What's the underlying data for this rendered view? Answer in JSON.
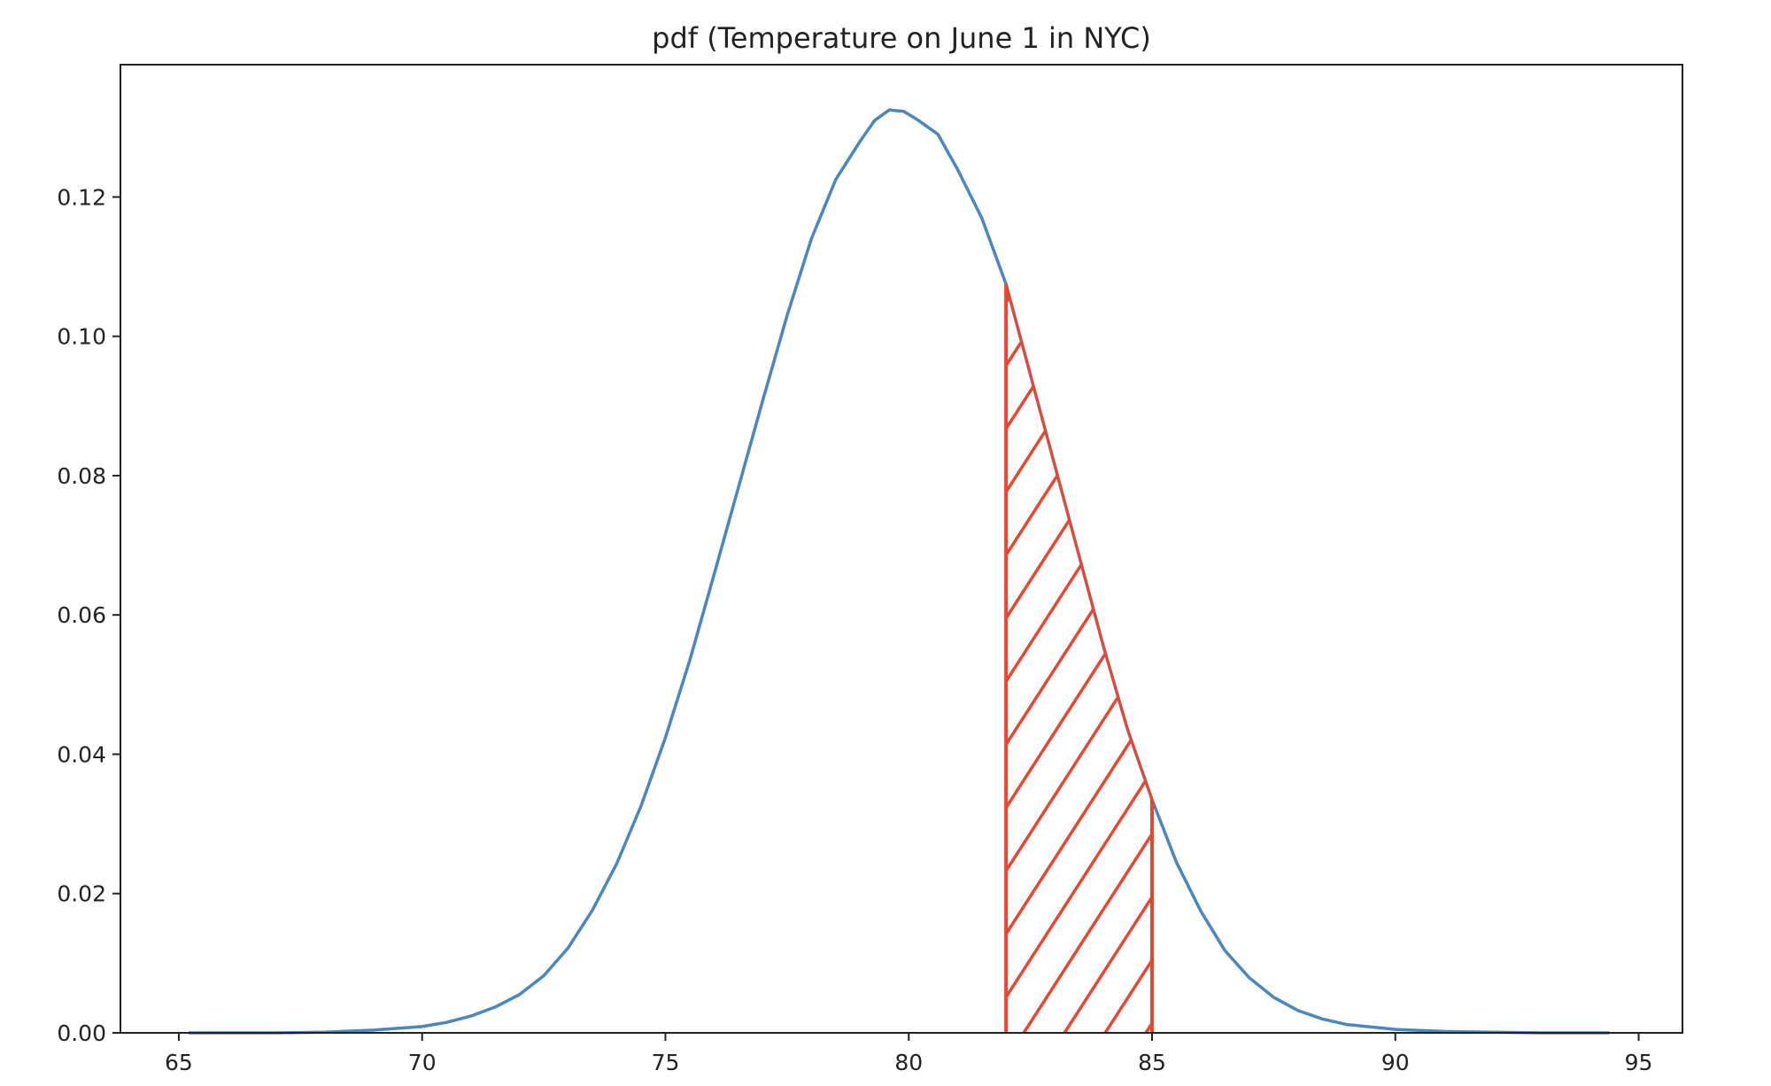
{
  "chart_data": {
    "type": "line",
    "title": "pdf (Temperature on June 1 in NYC)",
    "xlabel": "",
    "ylabel": "",
    "xlim": [
      63.8,
      95.9
    ],
    "ylim": [
      0,
      0.139
    ],
    "xticks": [
      65,
      70,
      75,
      80,
      85,
      90,
      95
    ],
    "xtick_labels": [
      "65",
      "70",
      "75",
      "80",
      "85",
      "90",
      "95"
    ],
    "yticks": [
      0.0,
      0.02,
      0.04,
      0.06,
      0.08,
      0.1,
      0.12
    ],
    "ytick_labels": [
      "0.00",
      "0.02",
      "0.04",
      "0.06",
      "0.08",
      "0.10",
      "0.12"
    ],
    "grid": false,
    "series": [
      {
        "color": "#4a86c0",
        "x": [
          65.2,
          66.0,
          67.0,
          68.0,
          69.0,
          70.0,
          70.5,
          71.0,
          71.5,
          72.0,
          72.5,
          73.0,
          73.5,
          74.0,
          74.5,
          75.0,
          75.5,
          76.0,
          76.5,
          77.0,
          77.5,
          78.0,
          78.5,
          79.0,
          79.3,
          79.6,
          79.9,
          80.2,
          80.6,
          81.0,
          81.5,
          82.0,
          82.5,
          83.0,
          83.5,
          84.0,
          84.5,
          85.0,
          85.5,
          86.0,
          86.5,
          87.0,
          87.5,
          88.0,
          88.5,
          89.0,
          90.0,
          91.0,
          92.0,
          93.0,
          94.4
        ],
        "y": [
          0.0,
          0.0,
          0.0,
          0.0001,
          0.0004,
          0.0009,
          0.0015,
          0.0024,
          0.0037,
          0.0055,
          0.0082,
          0.0122,
          0.0176,
          0.0243,
          0.0326,
          0.0424,
          0.0535,
          0.0658,
          0.0783,
          0.0908,
          0.103,
          0.114,
          0.1225,
          0.128,
          0.131,
          0.1325,
          0.1323,
          0.131,
          0.129,
          0.124,
          0.117,
          0.1075,
          0.0945,
          0.0815,
          0.0685,
          0.0555,
          0.0435,
          0.0335,
          0.0245,
          0.0175,
          0.0118,
          0.0079,
          0.0051,
          0.0032,
          0.002,
          0.0012,
          0.0005,
          0.0002,
          0.0001,
          0.0,
          0.0
        ]
      }
    ],
    "shaded_region": {
      "x_start": 82,
      "x_end": 85,
      "color": "#e8472f",
      "pattern": "hatch"
    }
  }
}
